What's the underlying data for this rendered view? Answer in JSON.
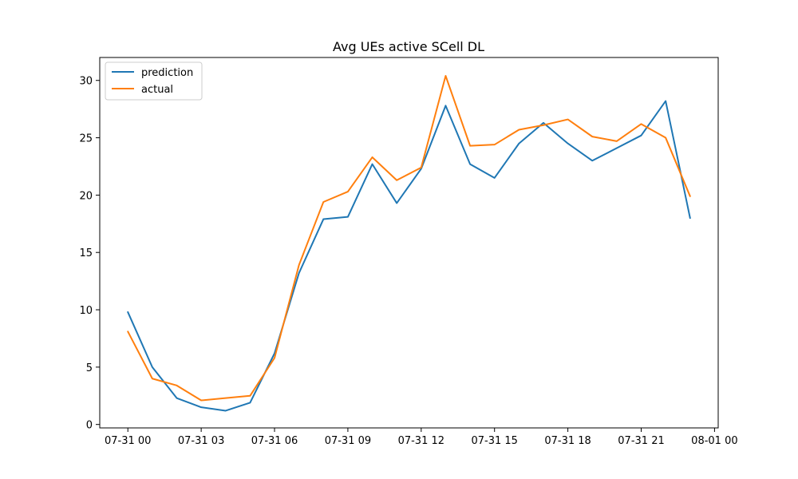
{
  "chart_data": {
    "type": "line",
    "title": "Avg UEs active SCell DL",
    "xlabel": "",
    "ylabel": "",
    "x": [
      "07-31 00",
      "07-31 01",
      "07-31 02",
      "07-31 03",
      "07-31 04",
      "07-31 05",
      "07-31 06",
      "07-31 07",
      "07-31 08",
      "07-31 09",
      "07-31 10",
      "07-31 11",
      "07-31 12",
      "07-31 13",
      "07-31 14",
      "07-31 15",
      "07-31 16",
      "07-31 17",
      "07-31 18",
      "07-31 19",
      "07-31 20",
      "07-31 21",
      "07-31 22",
      "07-31 23"
    ],
    "x_hours": [
      0,
      1,
      2,
      3,
      4,
      5,
      6,
      7,
      8,
      9,
      10,
      11,
      12,
      13,
      14,
      15,
      16,
      17,
      18,
      19,
      20,
      21,
      22,
      23
    ],
    "xlim_hours": [
      -1.15,
      24.15
    ],
    "ylim": [
      -0.3,
      32.0
    ],
    "xticks": {
      "hours": [
        0,
        3,
        6,
        9,
        12,
        15,
        18,
        21,
        24
      ],
      "labels": [
        "07-31 00",
        "07-31 03",
        "07-31 06",
        "07-31 09",
        "07-31 12",
        "07-31 15",
        "07-31 18",
        "07-31 21",
        "08-01 00"
      ]
    },
    "yticks": {
      "values": [
        0,
        5,
        10,
        15,
        20,
        25,
        30
      ],
      "labels": [
        "0",
        "5",
        "10",
        "15",
        "20",
        "25",
        "30"
      ]
    },
    "grid": false,
    "legend_position": "top-left",
    "series": [
      {
        "name": "prediction",
        "color": "#1f77b4",
        "values": [
          9.8,
          5.0,
          2.3,
          1.5,
          1.2,
          1.9,
          6.2,
          13.2,
          17.9,
          18.1,
          22.7,
          19.3,
          22.3,
          27.8,
          22.7,
          21.5,
          24.5,
          26.3,
          24.5,
          23.0,
          24.1,
          25.2,
          28.2,
          18.0
        ]
      },
      {
        "name": "actual",
        "color": "#ff7f0e",
        "values": [
          8.1,
          4.0,
          3.4,
          2.1,
          2.3,
          2.5,
          5.8,
          13.9,
          19.4,
          20.3,
          23.3,
          21.3,
          22.4,
          30.4,
          24.3,
          24.4,
          25.7,
          26.1,
          26.6,
          25.1,
          24.7,
          26.2,
          25.0,
          19.9
        ]
      }
    ]
  }
}
